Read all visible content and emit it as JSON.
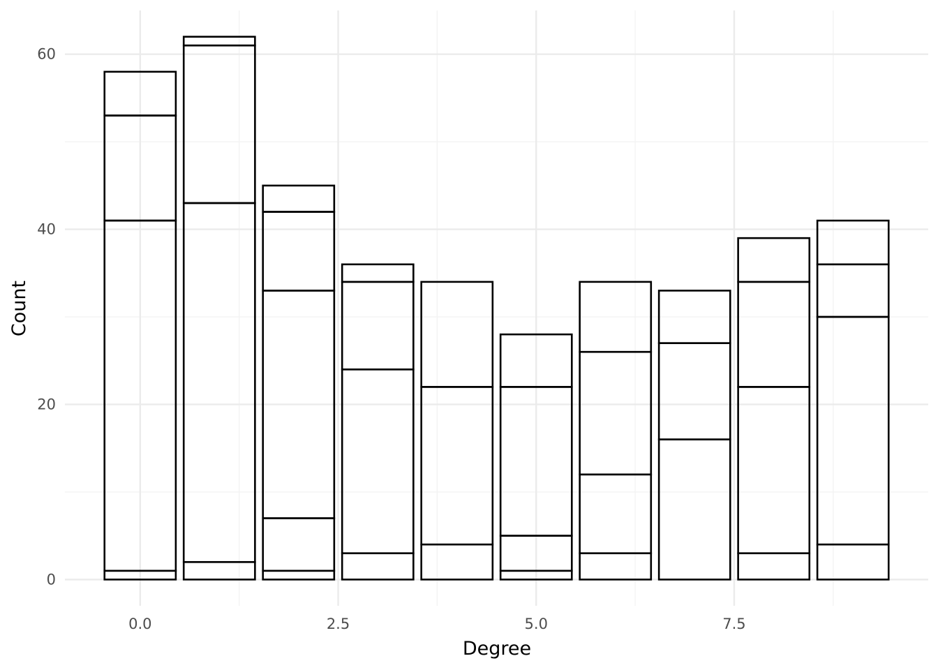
{
  "chart_data": {
    "type": "bar",
    "stacked": true,
    "xlabel": "Degree",
    "ylabel": "Count",
    "x": [
      0,
      1,
      2,
      3,
      4,
      5,
      6,
      7,
      8,
      9
    ],
    "segment_boundaries": [
      [
        0,
        1,
        41,
        53,
        58
      ],
      [
        0,
        2,
        43,
        61,
        62
      ],
      [
        0,
        1,
        7,
        33,
        42,
        45
      ],
      [
        0,
        3,
        24,
        34,
        36
      ],
      [
        0,
        4,
        22,
        34
      ],
      [
        0,
        1,
        5,
        22,
        28
      ],
      [
        0,
        3,
        12,
        26,
        34
      ],
      [
        0,
        16,
        27,
        33
      ],
      [
        0,
        3,
        22,
        34,
        39
      ],
      [
        0,
        4,
        30,
        36,
        41
      ]
    ],
    "totals": [
      58,
      62,
      45,
      36,
      34,
      28,
      34,
      33,
      39,
      41
    ],
    "xlim": [
      -0.95,
      9.95
    ],
    "ylim": [
      -3,
      65
    ],
    "x_ticks": [
      0,
      2.5,
      5,
      7.5
    ],
    "x_tick_labels": [
      "0.0",
      "2.5",
      "5.0",
      "7.5"
    ],
    "y_ticks": [
      0,
      20,
      40,
      60
    ],
    "y_tick_labels": [
      "0",
      "20",
      "40",
      "60"
    ],
    "bar_width": 0.9,
    "grid": true,
    "legend": "none",
    "colors": {
      "bar_outline": "#000000",
      "bar_fill": "none",
      "grid": "#ebebeb"
    }
  }
}
